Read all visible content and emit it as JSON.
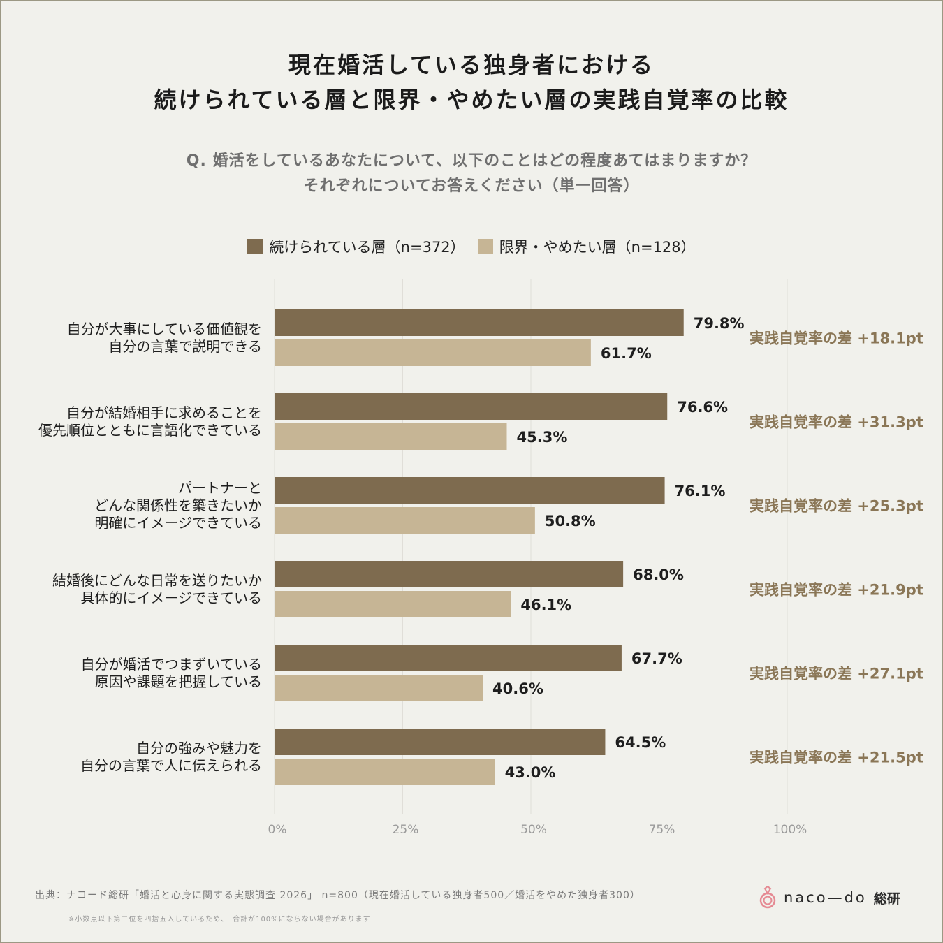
{
  "title_line1": "現在婚活している独身者における",
  "title_line2": "続けられている層と限界・やめたい層の実践自覚率の比較",
  "question_line1": "Q. 婚活をしているあなたについて、以下のことはどの程度あてはまりますか？",
  "question_line2": "それぞれについてお答えください（単一回答）",
  "colors": {
    "series1": "#7e6b4f",
    "series2": "#c6b595",
    "diff_text": "#8a7656",
    "grid": "#e0ded8",
    "tick": "#9a9a9a",
    "background": "#f1f1ec"
  },
  "chart_data": {
    "type": "bar",
    "orientation": "horizontal",
    "categories": [
      [
        "自分が大事にしている価値観を",
        "自分の言葉で説明できる"
      ],
      [
        "自分が結婚相手に求めることを",
        "優先順位とともに言語化できている"
      ],
      [
        "パートナーと",
        "どんな関係性を築きたいか",
        "明確にイメージできている"
      ],
      [
        "結婚後にどんな日常を送りたいか",
        "具体的にイメージできている"
      ],
      [
        "自分が婚活でつまずいている",
        "原因や課題を把握している"
      ],
      [
        "自分の強みや魅力を",
        "自分の言葉で人に伝えられる"
      ]
    ],
    "series": [
      {
        "name": "続けられている層（n=372）",
        "values": [
          79.8,
          76.6,
          76.1,
          68.0,
          67.7,
          64.5
        ],
        "labels": [
          "79.8%",
          "76.6%",
          "76.1%",
          "68.0%",
          "67.7%",
          "64.5%"
        ]
      },
      {
        "name": "限界・やめたい層（n=128）",
        "values": [
          61.7,
          45.3,
          50.8,
          46.1,
          40.6,
          43.0
        ],
        "labels": [
          "61.7%",
          "45.3%",
          "50.8%",
          "46.1%",
          "40.6%",
          "43.0%"
        ]
      }
    ],
    "differences": [
      "実践自覚率の差 +18.1pt",
      "実践自覚率の差 +31.3pt",
      "実践自覚率の差 +25.3pt",
      "実践自覚率の差 +21.9pt",
      "実践自覚率の差 +27.1pt",
      "実践自覚率の差 +21.5pt"
    ],
    "xlim": [
      0,
      100
    ],
    "xticks": [
      0,
      25,
      50,
      75,
      100
    ],
    "xtick_labels": [
      "0%",
      "25%",
      "50%",
      "75%",
      "100%"
    ],
    "grid": true,
    "legend_position": "top-center"
  },
  "source": "出典：ナコード総研「婚活と心身に関する実態調査 2026」 n=800（現在婚活している独身者500／婚活をやめた独身者300）",
  "note": "※小数点以下第二位を四捨五入しているため、　合計が100%にならない場合があります",
  "brand": {
    "name": "naco—do",
    "suffix": "総研",
    "logo_icon": "naco-do-ring-logo-icon"
  }
}
